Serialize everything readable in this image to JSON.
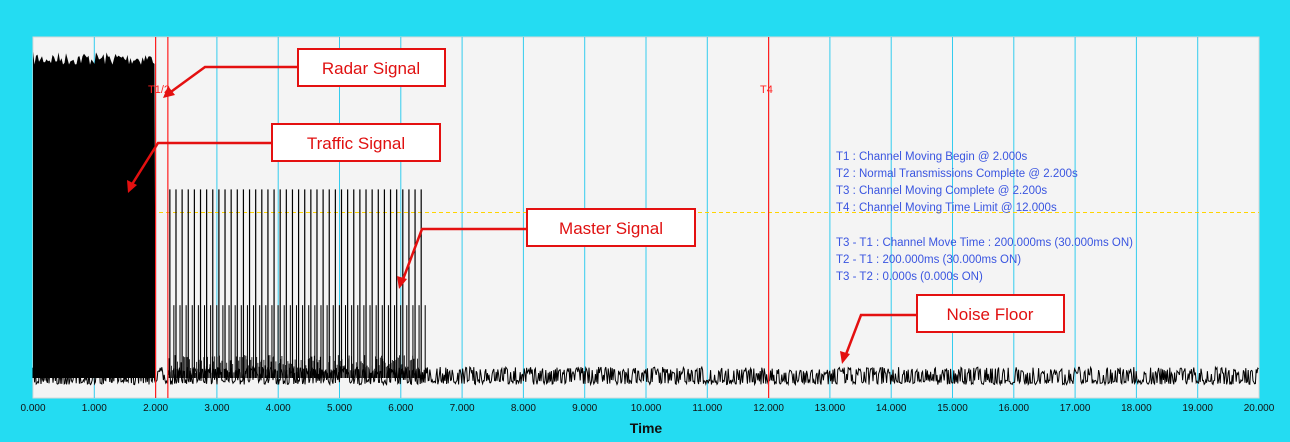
{
  "chart_data": {
    "type": "line",
    "title": "",
    "xlabel": "Time",
    "ylabel": "",
    "xlim": [
      0,
      20
    ],
    "x_ticks": [
      "0.000",
      "1.000",
      "2.000",
      "3.000",
      "4.000",
      "5.000",
      "6.000",
      "7.000",
      "8.000",
      "9.000",
      "10.000",
      "11.000",
      "12.000",
      "13.000",
      "14.000",
      "15.000",
      "16.000",
      "17.000",
      "18.000",
      "19.000",
      "20.000"
    ],
    "grid": "vertical",
    "threshold_line": {
      "level": 0.5,
      "style": "dashed",
      "color": "#ffd400"
    },
    "markers": [
      {
        "label": "T1",
        "x": 2.0
      },
      {
        "label": "T2",
        "x": 2.2
      },
      {
        "label": "T4",
        "x": 12.0
      }
    ],
    "marker_labels_text": {
      "t12": "T1/2",
      "t4": "T4"
    },
    "series": [
      {
        "kind": "traffic",
        "x_start": 0.0,
        "x_end": 2.0,
        "level": 0.98
      },
      {
        "kind": "master",
        "x_start": 2.2,
        "x_end": 6.3,
        "level": 0.57,
        "pulse_period": 0.1
      },
      {
        "kind": "noise",
        "x_start": 0.0,
        "x_end": 20.0,
        "level": 0.05
      }
    ],
    "info_text": [
      "T1 : Channel Moving Begin @ 2.000s",
      "T2 : Normal Transmissions Complete @ 2.200s",
      "T3 : Channel Moving Complete @ 2.200s",
      "T4 : Channel Moving Time Limit @ 12.000s",
      "T3 - T1 : Channel Move Time : 200.000ms (30.000ms ON)",
      "T2 - T1 : 200.000ms (30.000ms ON)",
      "T3 - T2 : 0.000s (0.000s ON)"
    ],
    "annotations": [
      "Radar Signal",
      "Traffic Signal",
      "Master Signal",
      "Noise Floor"
    ]
  },
  "colors": {
    "border": "#24dcf2",
    "plot_bg": "#f4f4f4",
    "grid": "#33ccee",
    "marker": "#ff2020",
    "signal": "#000000",
    "info": "#3a55e0",
    "callout": "#e41010"
  }
}
